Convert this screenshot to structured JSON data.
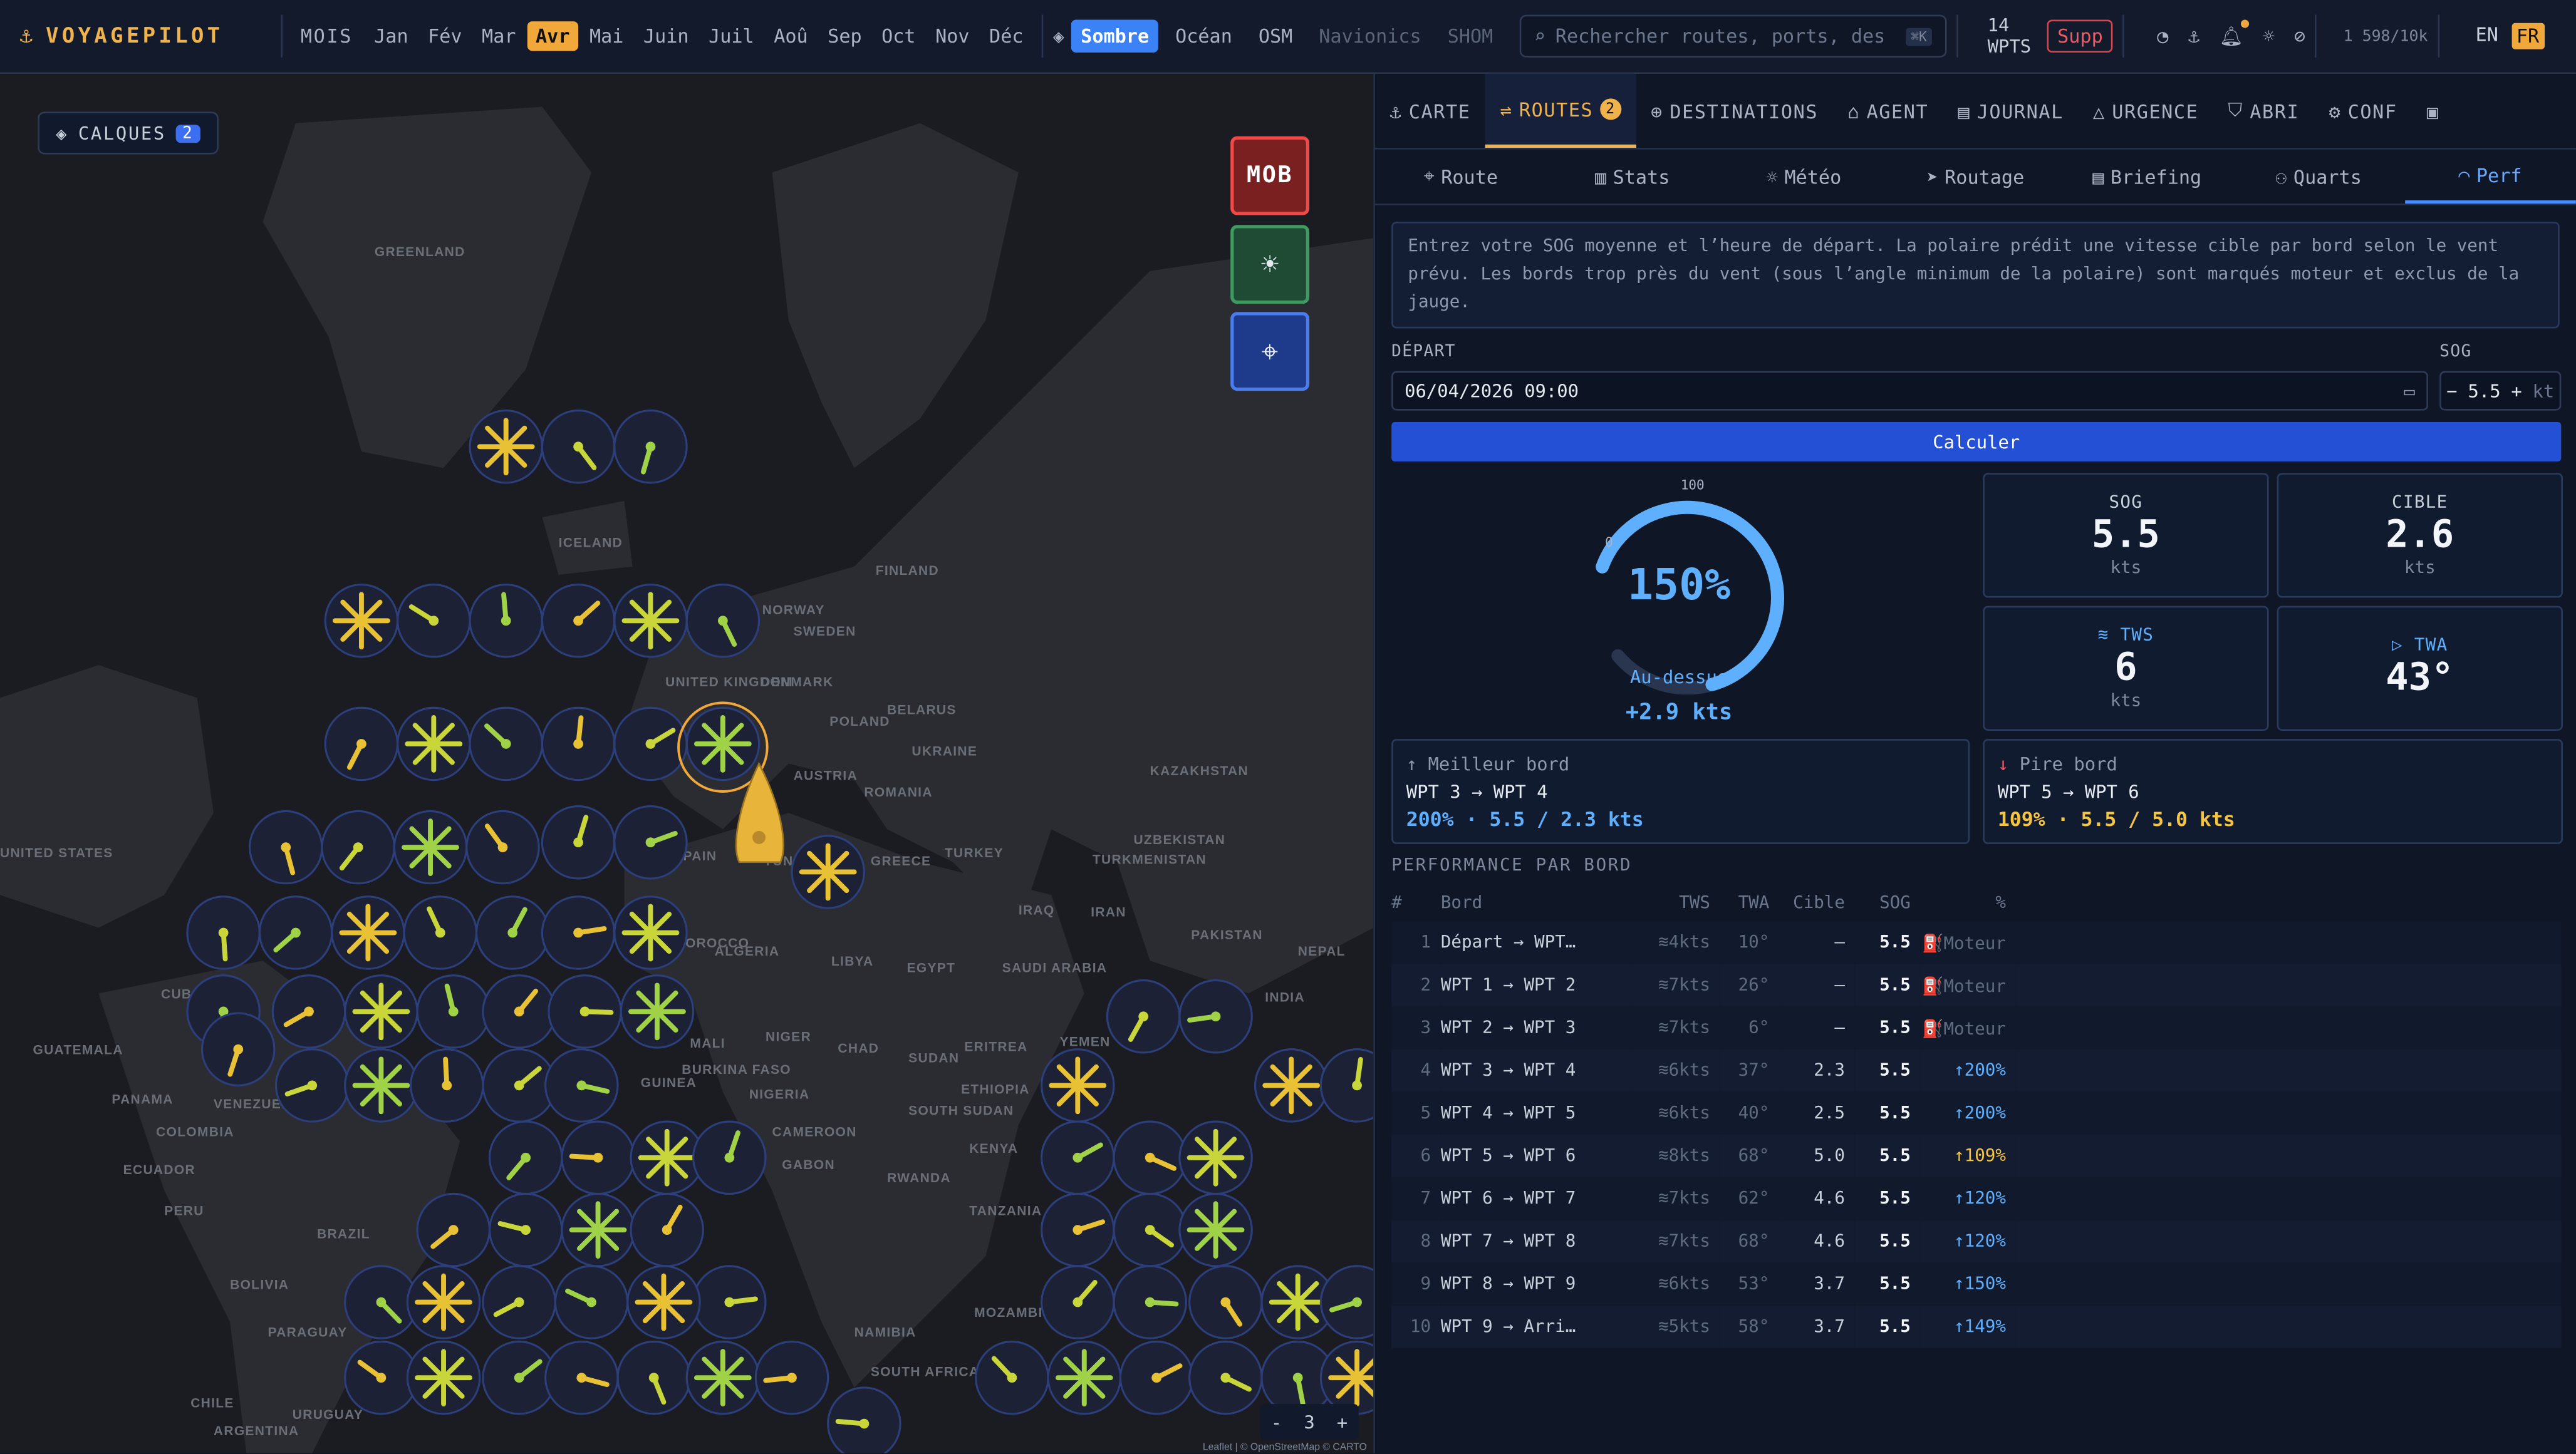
{
  "app": {
    "name": "VOYAGEPILOT"
  },
  "months": {
    "label": "MOIS",
    "items": [
      "Jan",
      "Fév",
      "Mar",
      "Avr",
      "Mai",
      "Juin",
      "Juil",
      "Aoû",
      "Sep",
      "Oct",
      "Nov",
      "Déc"
    ],
    "active": "Avr"
  },
  "map_styles": {
    "items": [
      "Sombre",
      "Océan",
      "OSM",
      "Navionics",
      "SHOM"
    ],
    "active": "Sombre"
  },
  "search": {
    "placeholder": "Rechercher routes, ports, destinations",
    "shortcut": "⌘K"
  },
  "wpts": {
    "count": "14",
    "label": "WPTS"
  },
  "supp_label": "Supp",
  "quota": "1 598/10k",
  "langs": [
    "EN",
    "FR"
  ],
  "map": {
    "layers_label": "CALQUES",
    "layers_count": "2",
    "mob_label": "MOB",
    "zoom_level": "3",
    "zoom_minus": "-",
    "zoom_plus": "+",
    "attribution": "Leaflet | © OpenStreetMap © CARTO",
    "labels": [
      "GREENLAND",
      "ICELAND",
      "FINLAND",
      "NORWAY",
      "SWEDEN",
      "DENMARK",
      "UNITED KINGDOM",
      "POLAND",
      "BELARUS",
      "UKRAINE",
      "KAZAKHSTAN",
      "AUSTRIA",
      "ROMANIA",
      "TURKEY",
      "UZBEKISTAN",
      "TURKMENISTAN",
      "SPAIN",
      "GREECE",
      "TUNISIA",
      "IRAQ",
      "IRAN",
      "ALGERIA",
      "LIBYA",
      "EGYPT",
      "SAUDI ARABIA",
      "PAKISTAN",
      "NEPAL",
      "INDIA",
      "MALI",
      "NIGER",
      "CHAD",
      "SUDAN",
      "ERITREA",
      "YEMEN",
      "ETHIOPIA",
      "SOUTH SUDAN",
      "NIGERIA",
      "BURKINA FASO",
      "GUINEA",
      "CAMEROON",
      "GABON",
      "KENYA",
      "RWANDA",
      "TANZANIA",
      "MOZAMBIQUE",
      "NAMIBIA",
      "SOUTH AFRICA",
      "PERU",
      "BRAZIL",
      "BOLIVIA",
      "PARAGUAY",
      "CHILE",
      "ARGENTINA",
      "URUGUAY",
      "COLOMBIA",
      "VENEZUELA",
      "ECUADOR",
      "PANAMA",
      "GUATEMALA",
      "CUBA",
      "UNITED STATES",
      "MOROCCO"
    ]
  },
  "tabs_main": [
    {
      "label": "CARTE",
      "icon": "anchor-icon"
    },
    {
      "label": "ROUTES",
      "icon": "route-icon",
      "count": "2",
      "active": true
    },
    {
      "label": "DESTINATIONS",
      "icon": "globe-icon"
    },
    {
      "label": "AGENT",
      "icon": "robot-icon"
    },
    {
      "label": "JOURNAL",
      "icon": "book-icon"
    },
    {
      "label": "URGENCE",
      "icon": "warning-icon"
    },
    {
      "label": "ABRI",
      "icon": "shield-icon"
    },
    {
      "label": "CONF",
      "icon": "gear-icon"
    }
  ],
  "tabs_sub": [
    {
      "label": "Route",
      "icon": "pin-icon"
    },
    {
      "label": "Stats",
      "icon": "stats-icon"
    },
    {
      "label": "Météo",
      "icon": "weather-icon"
    },
    {
      "label": "Routage",
      "icon": "navigate-icon"
    },
    {
      "label": "Briefing",
      "icon": "doc-icon"
    },
    {
      "label": "Quarts",
      "icon": "users-icon"
    },
    {
      "label": "Perf",
      "icon": "gauge-icon",
      "active": true
    }
  ],
  "info_text": "Entrez votre SOG moyenne et l’heure de départ. La polaire prédit une vitesse cible par bord selon le vent prévu. Les bords trop près du vent (sous l’angle minimum de la polaire) sont marqués moteur et exclus de la jauge.",
  "form": {
    "depart_label": "DÉPART",
    "depart_value": "06/04/2026 09:00",
    "sog_label": "SOG",
    "sog_value": "5.5",
    "sog_unit": "kt",
    "calc_label": "Calculer"
  },
  "gauge": {
    "percent": "150%",
    "fill_fraction": 1.0,
    "min": "0",
    "max": "100",
    "status": "Au-dessus",
    "delta": "+2.9 kts"
  },
  "stats": {
    "sog": {
      "label": "SOG",
      "value": "5.5",
      "unit": "kts"
    },
    "cible": {
      "label": "CIBLE",
      "value": "2.6",
      "unit": "kts"
    },
    "tws": {
      "label": "TWS",
      "value": "6",
      "unit": "kts"
    },
    "twa": {
      "label": "TWA",
      "value": "43°"
    }
  },
  "best": {
    "label": "Meilleur bord",
    "leg": "WPT 3 → WPT 4",
    "value": "200% · 5.5 / 2.3 kts"
  },
  "worst": {
    "label": "Pire bord",
    "leg": "WPT 5 → WPT 6",
    "value": "109% · 5.5 / 5.0 kts"
  },
  "perf": {
    "title": "PERFORMANCE PAR BORD",
    "headers": [
      "#",
      "Bord",
      "TWS",
      "TWA",
      "Cible",
      "SOG",
      "%"
    ],
    "rows": [
      {
        "n": "1",
        "bord": "Départ → WPT…",
        "tws": "4kts",
        "twa": "10°",
        "cible": "—",
        "sog": "5.5",
        "pct": "Moteur",
        "kind": "motor"
      },
      {
        "n": "2",
        "bord": "WPT 1 → WPT 2",
        "tws": "7kts",
        "twa": "26°",
        "cible": "—",
        "sog": "5.5",
        "pct": "Moteur",
        "kind": "motor"
      },
      {
        "n": "3",
        "bord": "WPT 2 → WPT 3",
        "tws": "7kts",
        "twa": "6°",
        "cible": "—",
        "sog": "5.5",
        "pct": "Moteur",
        "kind": "motor"
      },
      {
        "n": "4",
        "bord": "WPT 3 → WPT 4",
        "tws": "6kts",
        "twa": "37°",
        "cible": "2.3",
        "sog": "5.5",
        "pct": "200%",
        "kind": "blue"
      },
      {
        "n": "5",
        "bord": "WPT 4 → WPT 5",
        "tws": "6kts",
        "twa": "40°",
        "cible": "2.5",
        "sog": "5.5",
        "pct": "200%",
        "kind": "blue"
      },
      {
        "n": "6",
        "bord": "WPT 5 → WPT 6",
        "tws": "8kts",
        "twa": "68°",
        "cible": "5.0",
        "sog": "5.5",
        "pct": "109%",
        "kind": "yel"
      },
      {
        "n": "7",
        "bord": "WPT 6 → WPT 7",
        "tws": "7kts",
        "twa": "62°",
        "cible": "4.6",
        "sog": "5.5",
        "pct": "120%",
        "kind": "blue"
      },
      {
        "n": "8",
        "bord": "WPT 7 → WPT 8",
        "tws": "7kts",
        "twa": "68°",
        "cible": "4.6",
        "sog": "5.5",
        "pct": "120%",
        "kind": "blue"
      },
      {
        "n": "9",
        "bord": "WPT 8 → WPT 9",
        "tws": "6kts",
        "twa": "53°",
        "cible": "3.7",
        "sog": "5.5",
        "pct": "150%",
        "kind": "blue"
      },
      {
        "n": "10",
        "bord": "WPT 9 → Arri…",
        "tws": "5kts",
        "twa": "58°",
        "cible": "3.7",
        "sog": "5.5",
        "pct": "149%",
        "kind": "blue"
      }
    ]
  },
  "colors": {
    "accent": "#f0b24a",
    "blue": "#3b82f6",
    "danger": "#ef4a4a",
    "gauge": "#5eb0ff",
    "yellow": "#f5c542"
  }
}
